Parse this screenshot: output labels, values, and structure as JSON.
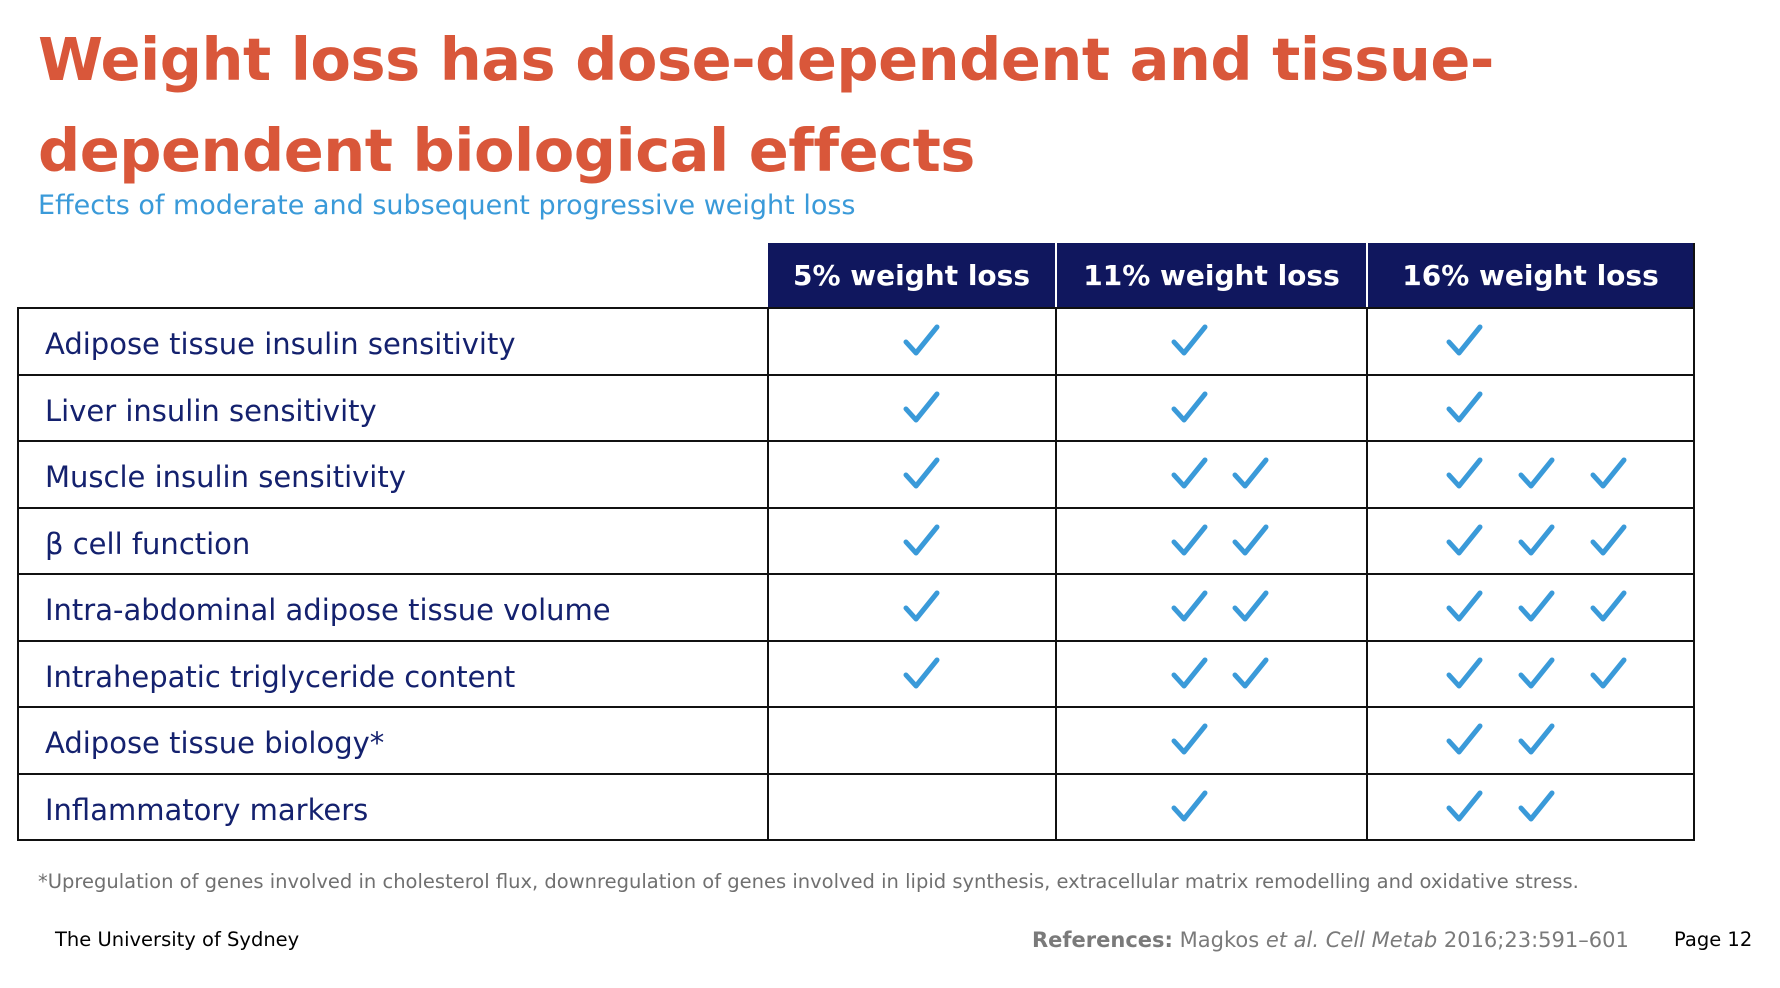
{
  "slide": {
    "title": "Weight loss has dose-dependent and tissue-dependent biological effects",
    "subtitle": "Effects of moderate and subsequent progressive weight loss",
    "footnote": "*Upregulation of genes involved in cholesterol flux, downregulation of genes involved in lipid synthesis, extracellular matrix remodelling and oxidative stress.",
    "institution": "The University of Sydney",
    "references": {
      "label": "References:",
      "author": "Magkos",
      "etal": "et al.",
      "journal": "Cell Metab",
      "citation": "2016;23:591–601"
    },
    "page_label": "Page 12"
  },
  "colors": {
    "title": "#d9573a",
    "subtitle": "#3a9ad9",
    "header_bg": "#10175e",
    "row_text": "#14216e",
    "check": "#3a9ad9"
  },
  "table": {
    "columns": [
      "5% weight loss",
      "11% weight loss",
      "16% weight loss"
    ],
    "check_icon": "checkmark-icon",
    "rows": [
      {
        "label": "Adipose tissue insulin sensitivity",
        "checks": [
          1,
          1,
          1
        ]
      },
      {
        "label": "Liver insulin sensitivity",
        "checks": [
          1,
          1,
          1
        ]
      },
      {
        "label": "Muscle insulin sensitivity",
        "checks": [
          1,
          2,
          3
        ]
      },
      {
        "label": "β cell function",
        "checks": [
          1,
          2,
          3
        ]
      },
      {
        "label": "Intra-abdominal adipose tissue volume",
        "checks": [
          1,
          2,
          3
        ]
      },
      {
        "label": "Intrahepatic triglyceride content",
        "checks": [
          1,
          2,
          3
        ]
      },
      {
        "label": "Adipose tissue biology*",
        "checks": [
          0,
          1,
          2
        ]
      },
      {
        "label": "Inflammatory markers",
        "checks": [
          0,
          1,
          2
        ]
      }
    ]
  }
}
